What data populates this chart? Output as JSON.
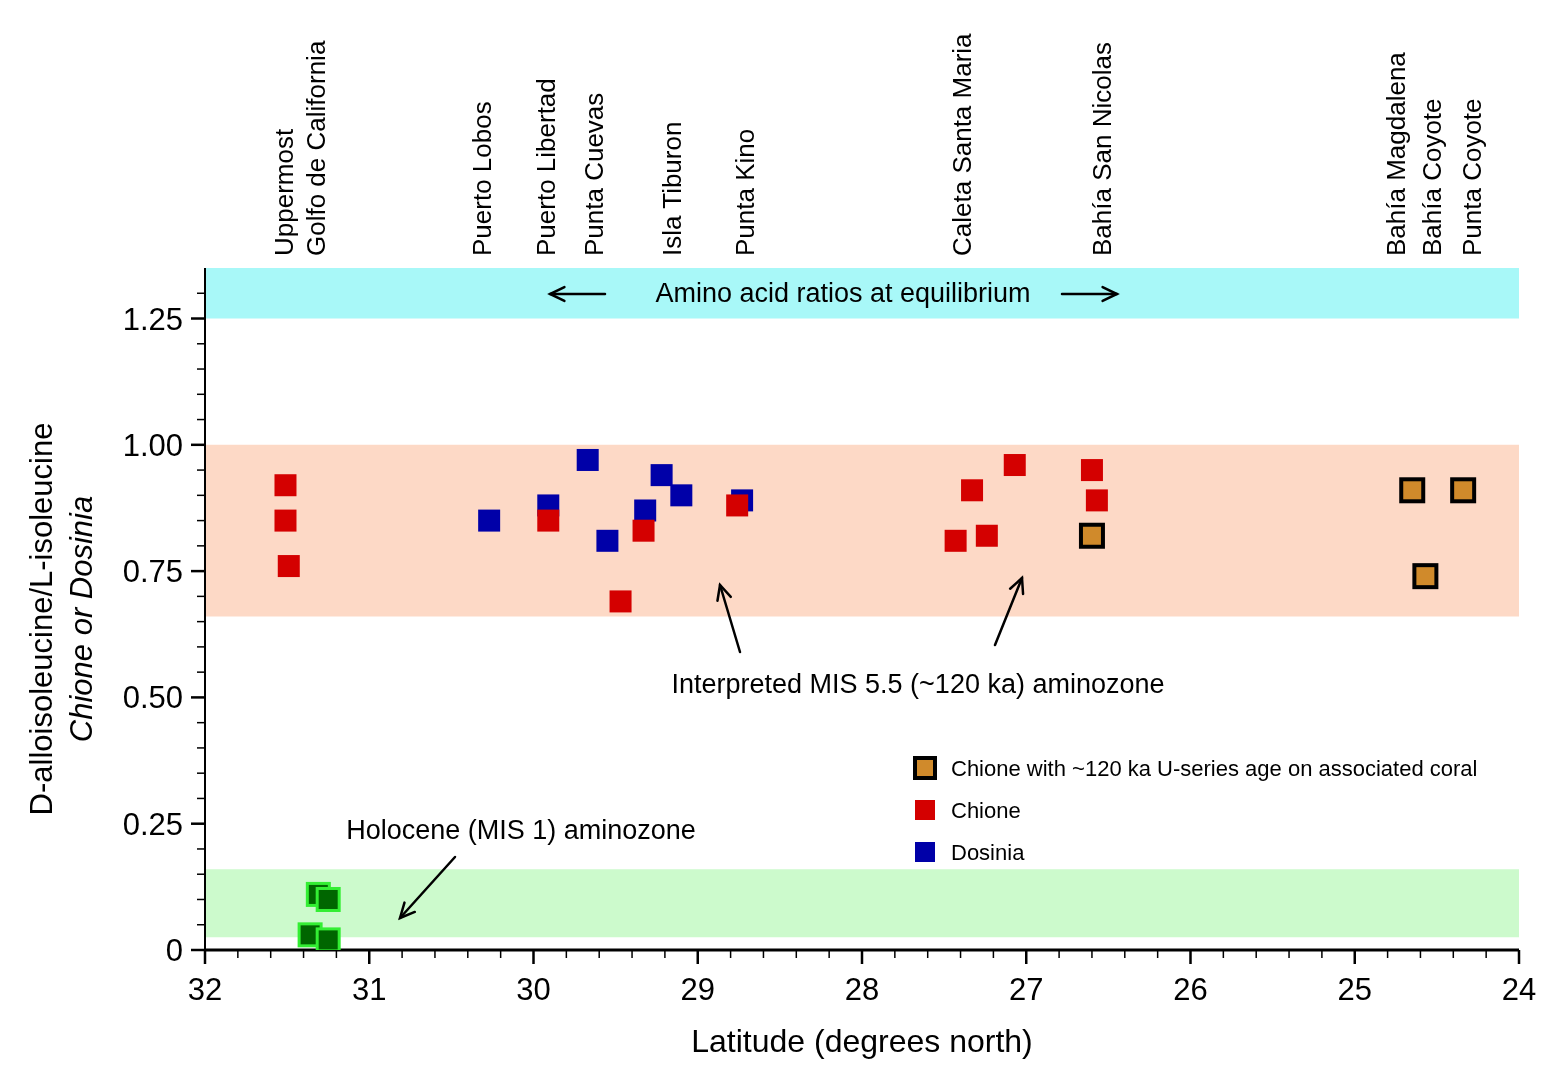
{
  "chart_data": {
    "type": "scatter",
    "xlabel": "Latitude (degrees north)",
    "ylabel": "D-alloisoleucine/L-isoleucine\nChione or Dosinia",
    "xlim": [
      32,
      24
    ],
    "xticks": [
      32,
      {
        "value": 31.8,
        "label": null
      },
      {
        "value": 31.6,
        "label": null
      },
      {
        "value": 31.4,
        "label": null
      },
      {
        "value": 31.2,
        "label": null
      },
      31,
      {
        "value": 30.8,
        "label": null
      },
      {
        "value": 30.6,
        "label": null
      },
      {
        "value": 30.4,
        "label": null
      },
      {
        "value": 30.2,
        "label": null
      },
      30,
      {
        "value": 29.8,
        "label": null
      },
      {
        "value": 29.6,
        "label": null
      },
      {
        "value": 29.4,
        "label": null
      },
      {
        "value": 29.2,
        "label": null
      },
      29,
      {
        "value": 28.8,
        "label": null
      },
      {
        "value": 28.6,
        "label": null
      },
      {
        "value": 28.4,
        "label": null
      },
      {
        "value": 28.2,
        "label": null
      },
      28,
      {
        "value": 27.8,
        "label": null
      },
      {
        "value": 27.6,
        "label": null
      },
      {
        "value": 27.4,
        "label": null
      },
      {
        "value": 27.2,
        "label": null
      },
      27,
      {
        "value": 26.8,
        "label": null
      },
      {
        "value": 26.6,
        "label": null
      },
      {
        "value": 26.4,
        "label": null
      },
      {
        "value": 26.2,
        "label": null
      },
      26,
      {
        "value": 25.8,
        "label": null
      },
      {
        "value": 25.6,
        "label": null
      },
      {
        "value": 25.4,
        "label": null
      },
      {
        "value": 25.2,
        "label": null
      },
      25,
      {
        "value": 24.8,
        "label": null
      },
      {
        "value": 24.6,
        "label": null
      },
      {
        "value": 24.4,
        "label": null
      },
      {
        "value": 24.2,
        "label": null
      },
      24
    ],
    "annotations": [
      "Uppermost\nGolfo de California",
      "Puerto Lobos",
      "Puerto Libertad",
      "Punta Cuevas",
      "Isla Tiburon",
      "Punta Kino",
      "Caleta Santa Maria",
      "Bahía San Nicolas",
      "Bahía Magdalena",
      "Bahía Coyote",
      "Punta Coyote"
    ],
    "ylim": [
      0,
      1.35
    ],
    "yticks": [
      {
        "value": 0,
        "label": "0"
      },
      {
        "value": 0.05,
        "label": null
      },
      {
        "value": 0.1,
        "label": null
      },
      {
        "value": 0.15,
        "label": null
      },
      {
        "value": 0.2,
        "label": null
      },
      {
        "value": 0.25,
        "label": "0.25"
      },
      {
        "value": 0.3,
        "label": null
      },
      {
        "value": 0.35,
        "label": null
      },
      {
        "value": 0.4,
        "label": null
      },
      {
        "value": 0.45,
        "label": null
      },
      {
        "value": 0.5,
        "label": "0.50"
      },
      {
        "value": 0.55,
        "label": null
      },
      {
        "value": 0.6,
        "label": null
      },
      {
        "value": 0.65,
        "label": null
      },
      {
        "value": 0.7,
        "label": null
      },
      {
        "value": 0.75,
        "label": "0.75"
      },
      {
        "value": 0.8,
        "label": null
      },
      {
        "value": 0.85,
        "label": null
      },
      {
        "value": 0.9,
        "label": null
      },
      {
        "value": 0.95,
        "label": null
      },
      {
        "value": 1,
        "label": "1.00"
      },
      {
        "value": 1.05,
        "label": null
      },
      {
        "value": 1.1,
        "label": null
      },
      {
        "value": 1.15,
        "label": null
      },
      {
        "value": 1.2,
        "label": null
      },
      {
        "value": 1.25,
        "label": "1.25"
      },
      {
        "value": 1.3,
        "label": null
      }
    ],
    "legend": "bottom right",
    "marker": "square",
    "bands": [
      {
        "axis": "y",
        "from": 1.25,
        "to": 1.35,
        "label": "Amino acid ratios at equilibrium",
        "color": "#a8f8f8"
      },
      {
        "axis": "y",
        "from": 0.66,
        "to": 1.0,
        "label": "Interpreted MIS 5.5 (~120 ka) aminozone",
        "color": "#fdd9c6"
      },
      {
        "axis": "y",
        "from": 0.025,
        "to": 0.16,
        "label": "Holocene (MIS 1) aminozone",
        "color": "#ccfacc"
      }
    ],
    "series": [
      {
        "name": "Chione with ~120 ka U-series age on associated coral",
        "color": "#d08a2b",
        "x": [
          26.6,
          24.65,
          24.57,
          24.34
        ],
        "values": [
          0.82,
          0.91,
          0.74,
          0.91
        ]
      },
      {
        "name": "Chione",
        "color": "#d40000",
        "x": [
          31.51,
          31.51,
          31.49,
          29.91,
          29.47,
          29.33,
          28.76,
          27.43,
          27.33,
          27.24,
          27.07,
          26.6,
          26.57
        ],
        "values": [
          0.92,
          0.85,
          0.76,
          0.85,
          0.69,
          0.83,
          0.88,
          0.81,
          0.91,
          0.82,
          0.96,
          0.95,
          0.89
        ]
      },
      {
        "name": "Dosinia",
        "color": "#0000a8",
        "x": [
          30.27,
          29.91,
          29.67,
          29.55,
          29.32,
          29.22,
          29.1,
          28.73
        ],
        "values": [
          0.85,
          0.88,
          0.97,
          0.81,
          0.87,
          0.94,
          0.9,
          0.89
        ]
      },
      {
        "color": "#006600",
        "x": [
          31.31,
          31.25,
          31.36,
          31.25
        ],
        "values": [
          0.11,
          0.1,
          0.03,
          0.02
        ]
      }
    ]
  }
}
